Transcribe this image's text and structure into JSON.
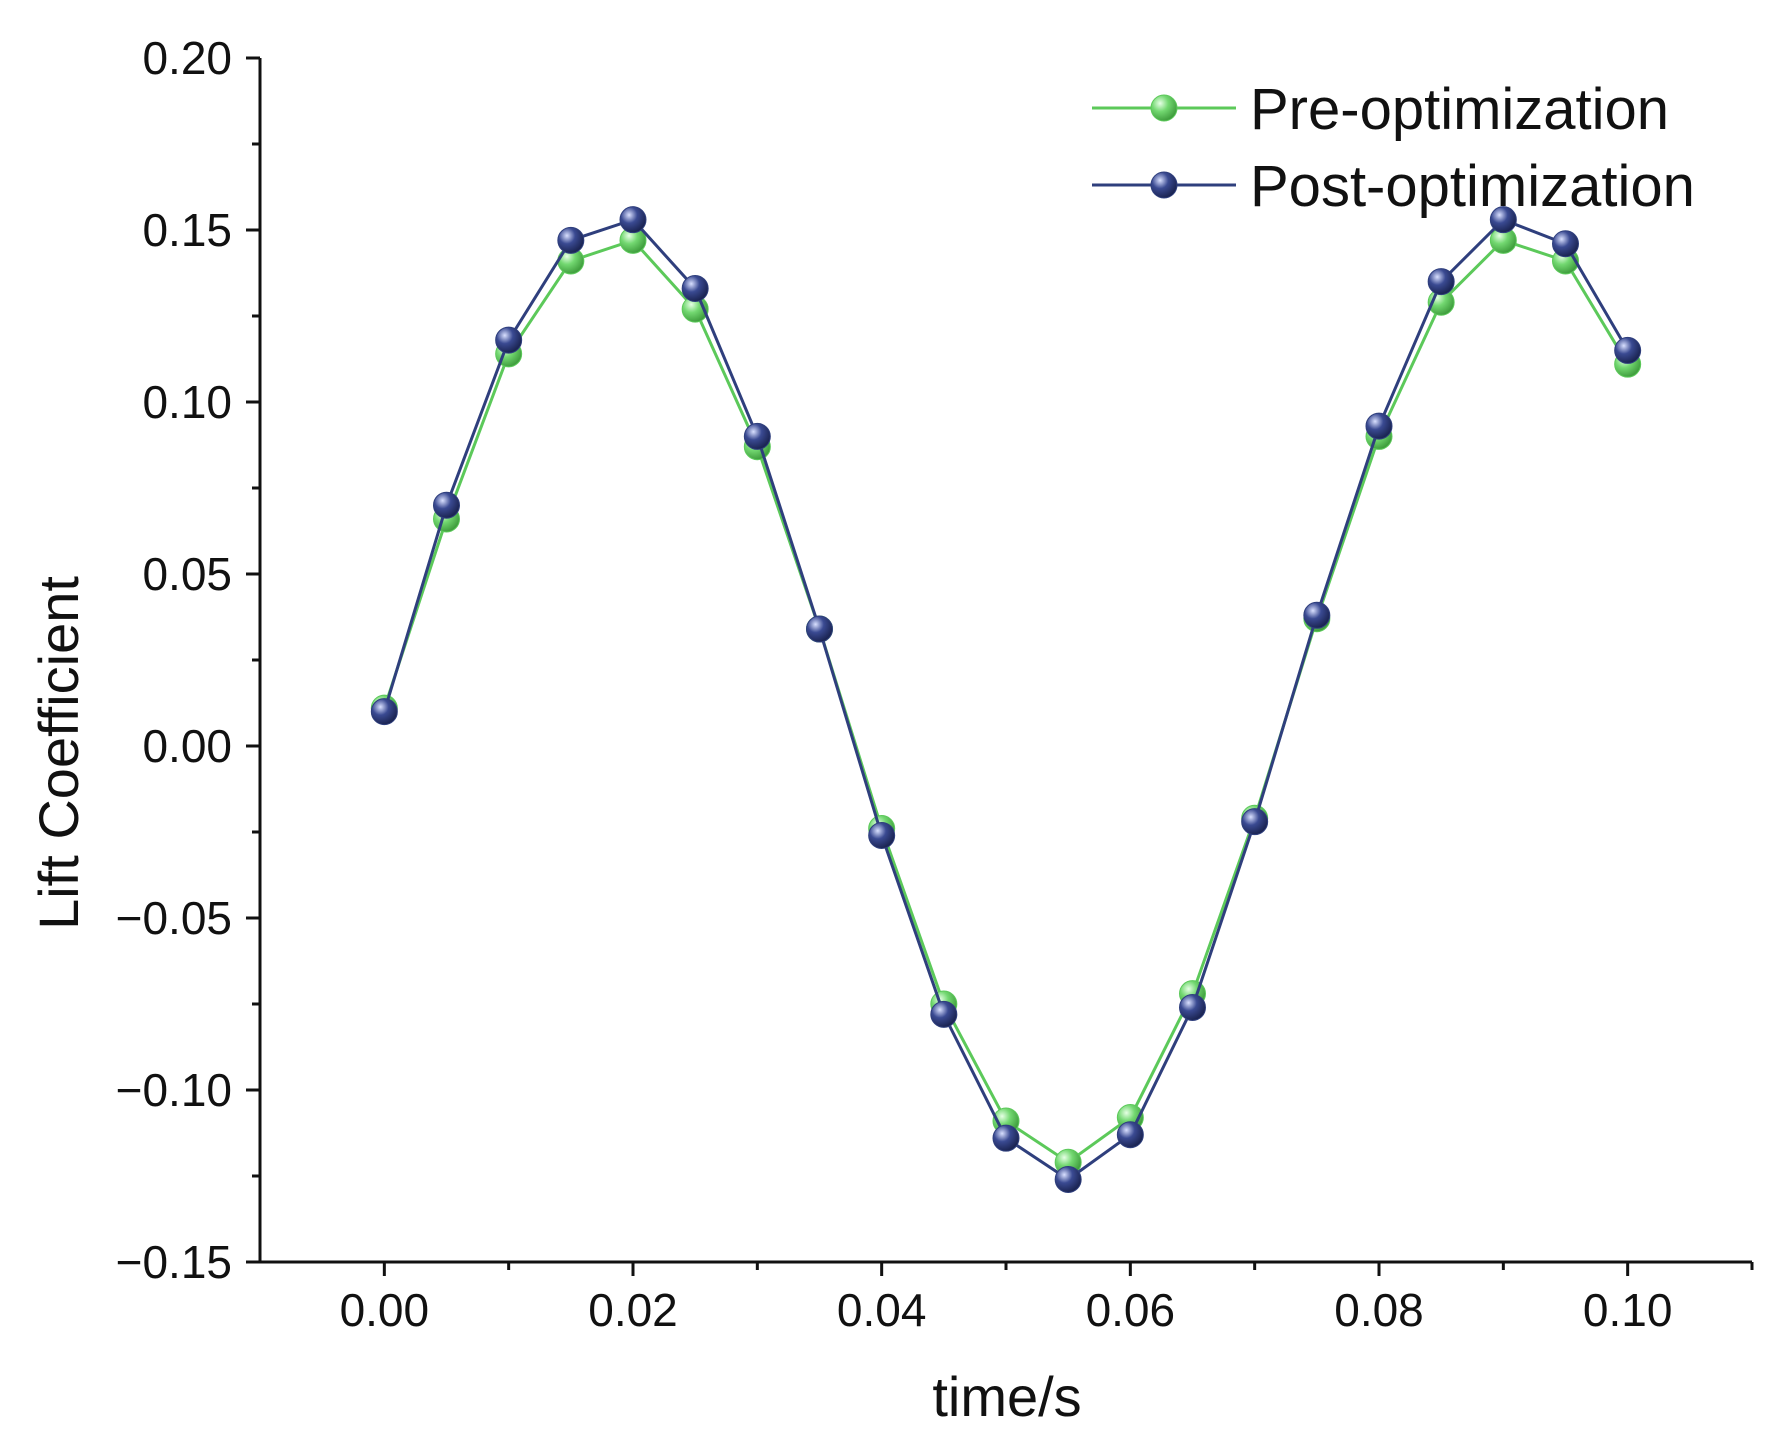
{
  "chart_data": {
    "type": "line",
    "title": "",
    "xlabel": "time/s",
    "ylabel": "Lift Coefficient",
    "xlim": [
      -0.01,
      0.11
    ],
    "ylim": [
      -0.15,
      0.2
    ],
    "xticks": [
      "0.00",
      "0.02",
      "0.04",
      "0.06",
      "0.08",
      "0.10"
    ],
    "xtick_values": [
      0.0,
      0.02,
      0.04,
      0.06,
      0.08,
      0.1
    ],
    "yticks": [
      "0.20",
      "0.15",
      "0.10",
      "0.05",
      "0.00",
      "−0.05",
      "−0.10",
      "−0.15"
    ],
    "ytick_values": [
      0.2,
      0.15,
      0.1,
      0.05,
      0.0,
      -0.05,
      -0.1,
      -0.15
    ],
    "legend_position": "top-right",
    "x": [
      0.0,
      0.005,
      0.01,
      0.015,
      0.02,
      0.025,
      0.03,
      0.035,
      0.04,
      0.045,
      0.05,
      0.055,
      0.06,
      0.065,
      0.07,
      0.075,
      0.08,
      0.085,
      0.09,
      0.095,
      0.1
    ],
    "series": [
      {
        "name": "Pre-optimization",
        "color": "#5cc95a",
        "marker_color": "#6fd66d",
        "values": [
          0.011,
          0.066,
          0.114,
          0.141,
          0.147,
          0.127,
          0.087,
          0.034,
          -0.024,
          -0.075,
          -0.109,
          -0.121,
          -0.108,
          -0.072,
          -0.021,
          0.037,
          0.09,
          0.129,
          0.147,
          0.141,
          0.111
        ]
      },
      {
        "name": "Post-optimization",
        "color": "#2f3f7d",
        "marker_color": "#34448a",
        "values": [
          0.01,
          0.07,
          0.118,
          0.147,
          0.153,
          0.133,
          0.09,
          0.034,
          -0.026,
          -0.078,
          -0.114,
          -0.126,
          -0.113,
          -0.076,
          -0.022,
          0.038,
          0.093,
          0.135,
          0.153,
          0.146,
          0.115
        ]
      }
    ]
  }
}
